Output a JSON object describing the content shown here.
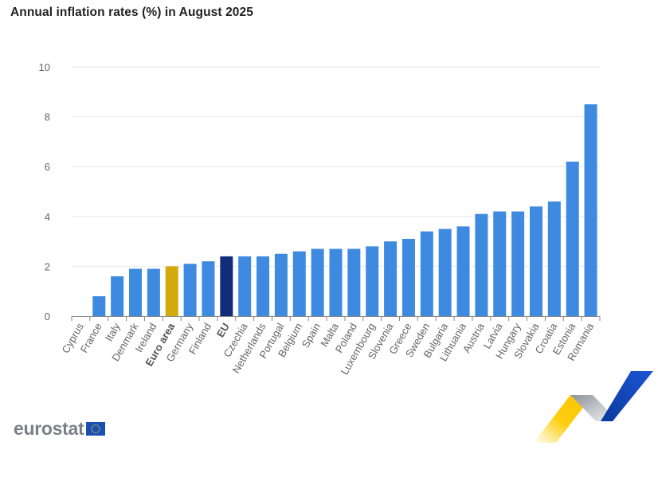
{
  "title": "Annual inflation rates (%) in August 2025",
  "logo": {
    "text": "eurostat",
    "flag_icon": "eu-flag-icon"
  },
  "colors": {
    "country": "#3d8ae0",
    "euro_area": "#d4a90a",
    "eu": "#0f2d78",
    "grid": "#e8e9ef",
    "axis": "#888888",
    "text": "#666666"
  },
  "chart_data": {
    "type": "bar",
    "title": "Annual inflation rates (%) in August 2025",
    "xlabel": "",
    "ylabel": "",
    "ylim": [
      0,
      10
    ],
    "yticks": [
      0,
      2,
      4,
      6,
      8,
      10
    ],
    "grid": true,
    "legend": "none",
    "categories": [
      "Cyprus",
      "France",
      "Italy",
      "Denmark",
      "Ireland",
      "Euro area",
      "Germany",
      "Finland",
      "EU",
      "Czechia",
      "Netherlands",
      "Portugal",
      "Belgium",
      "Spain",
      "Malta",
      "Poland",
      "Luxembourg",
      "Slovenia",
      "Greece",
      "Sweden",
      "Bulgaria",
      "Lithuania",
      "Austria",
      "Latvia",
      "Hungary",
      "Slovakia",
      "Croatia",
      "Estonia",
      "Romania"
    ],
    "values": [
      0.0,
      0.8,
      1.6,
      1.9,
      1.9,
      2.0,
      2.1,
      2.2,
      2.4,
      2.4,
      2.4,
      2.5,
      2.6,
      2.7,
      2.7,
      2.7,
      2.8,
      3.0,
      3.1,
      3.4,
      3.5,
      3.6,
      4.1,
      4.2,
      4.2,
      4.4,
      4.6,
      6.2,
      8.5
    ],
    "highlight": {
      "Euro area": "euro_area",
      "EU": "eu"
    },
    "bold_categories": [
      "Euro area",
      "EU"
    ]
  }
}
